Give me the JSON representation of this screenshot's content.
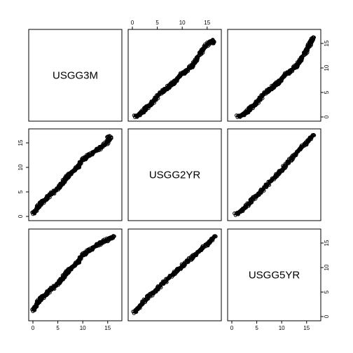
{
  "chart_data": {
    "type": "scatter",
    "layout": "pairs-matrix",
    "variables": [
      "USGG3M",
      "USGG2YR",
      "USGG5YR"
    ],
    "axis_range": [
      0,
      17
    ],
    "ticks": [
      0,
      5,
      10,
      15
    ],
    "tick_labels": [
      "0",
      "5",
      "10",
      "15"
    ],
    "marker": "open-circle",
    "color": "#000000",
    "relationships": [
      {
        "x": "USGG2YR",
        "y": "USGG3M",
        "points": [
          [
            0.6,
            0.1
          ],
          [
            1.0,
            0.3
          ],
          [
            1.5,
            0.7
          ],
          [
            2.0,
            1.0
          ],
          [
            2.5,
            1.5
          ],
          [
            3.0,
            2.0
          ],
          [
            3.5,
            2.5
          ],
          [
            4.0,
            3.0
          ],
          [
            4.5,
            3.5
          ],
          [
            5.0,
            4.2
          ],
          [
            5.5,
            4.8
          ],
          [
            6.0,
            5.2
          ],
          [
            6.5,
            5.6
          ],
          [
            7.0,
            6.0
          ],
          [
            7.5,
            6.4
          ],
          [
            8.0,
            6.8
          ],
          [
            8.5,
            7.2
          ],
          [
            9.0,
            7.8
          ],
          [
            9.5,
            8.4
          ],
          [
            10.0,
            8.9
          ],
          [
            10.5,
            9.2
          ],
          [
            11.0,
            9.5
          ],
          [
            11.5,
            10.0
          ],
          [
            12.0,
            10.5
          ],
          [
            12.5,
            11.2
          ],
          [
            13.0,
            12.0
          ],
          [
            13.5,
            12.8
          ],
          [
            14.0,
            13.5
          ],
          [
            14.5,
            14.2
          ],
          [
            15.0,
            14.8
          ],
          [
            15.5,
            15.2
          ],
          [
            16.0,
            15.6
          ],
          [
            16.3,
            15.0
          ]
        ]
      },
      {
        "x": "USGG5YR",
        "y": "USGG3M",
        "points": [
          [
            1.2,
            0.1
          ],
          [
            1.8,
            0.3
          ],
          [
            2.5,
            0.7
          ],
          [
            3.0,
            1.0
          ],
          [
            3.5,
            1.5
          ],
          [
            4.0,
            2.0
          ],
          [
            4.5,
            2.5
          ],
          [
            5.0,
            3.0
          ],
          [
            5.5,
            3.5
          ],
          [
            6.0,
            4.2
          ],
          [
            6.5,
            4.8
          ],
          [
            7.0,
            5.2
          ],
          [
            7.5,
            5.6
          ],
          [
            8.0,
            6.0
          ],
          [
            8.5,
            6.4
          ],
          [
            9.0,
            6.8
          ],
          [
            9.5,
            7.2
          ],
          [
            10.0,
            7.8
          ],
          [
            10.5,
            8.4
          ],
          [
            11.0,
            8.9
          ],
          [
            11.5,
            9.2
          ],
          [
            12.0,
            9.5
          ],
          [
            12.5,
            10.0
          ],
          [
            13.0,
            10.5
          ],
          [
            13.5,
            11.2
          ],
          [
            14.0,
            12.0
          ],
          [
            14.5,
            12.8
          ],
          [
            15.0,
            13.5
          ],
          [
            15.3,
            14.2
          ],
          [
            15.6,
            14.8
          ],
          [
            15.9,
            15.3
          ],
          [
            16.1,
            15.8
          ],
          [
            16.3,
            16.2
          ]
        ]
      },
      {
        "x": "USGG5YR",
        "y": "USGG2YR",
        "points": [
          [
            0.8,
            0.4
          ],
          [
            1.5,
            0.9
          ],
          [
            2.2,
            1.5
          ],
          [
            3.0,
            2.2
          ],
          [
            3.8,
            3.0
          ],
          [
            4.5,
            3.8
          ],
          [
            5.2,
            4.5
          ],
          [
            6.0,
            5.3
          ],
          [
            6.7,
            6.0
          ],
          [
            7.4,
            6.8
          ],
          [
            8.1,
            7.5
          ],
          [
            8.8,
            8.3
          ],
          [
            9.5,
            9.0
          ],
          [
            10.2,
            9.8
          ],
          [
            10.9,
            10.6
          ],
          [
            11.6,
            11.4
          ],
          [
            12.3,
            12.2
          ],
          [
            13.0,
            13.0
          ],
          [
            13.7,
            13.8
          ],
          [
            14.4,
            14.5
          ],
          [
            15.1,
            15.3
          ],
          [
            15.8,
            16.0
          ],
          [
            16.3,
            16.5
          ]
        ]
      }
    ]
  }
}
